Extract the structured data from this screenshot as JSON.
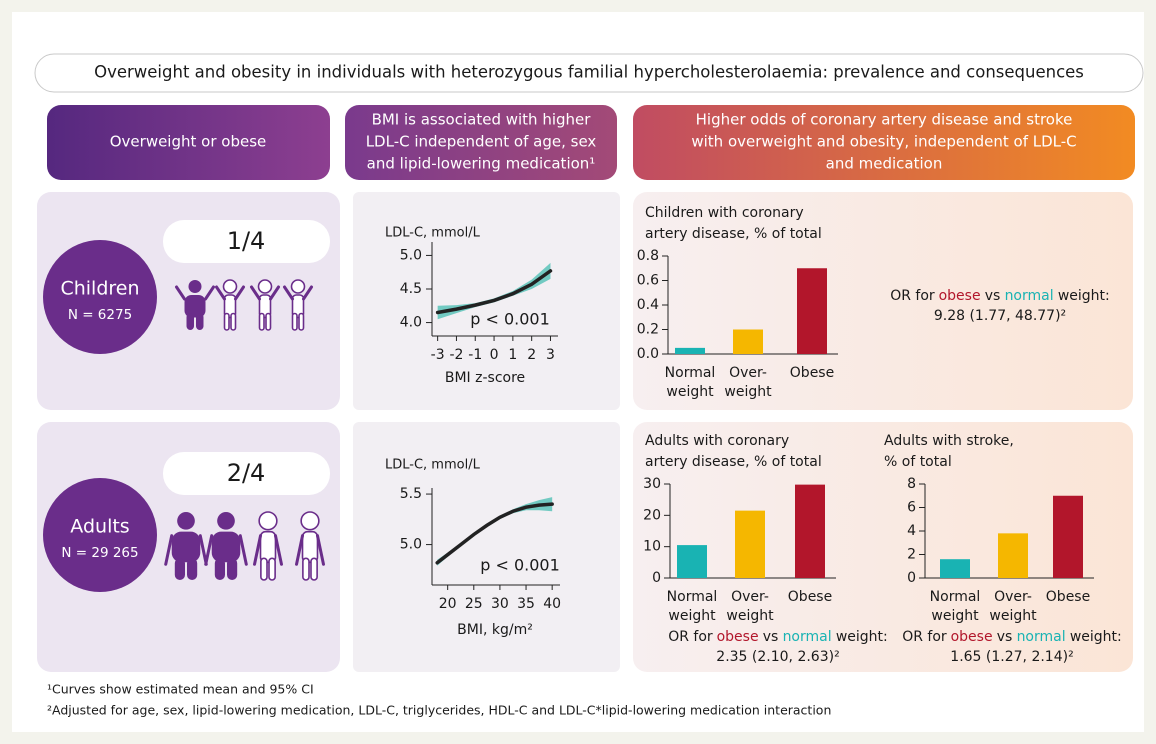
{
  "title": "Overweight and obesity in individuals with heterozygous familial hypercholesterolaemia: prevalence and consequences",
  "headers": [
    [
      "Overweight or obese"
    ],
    [
      "BMI is associated with higher",
      "LDL-C independent of age, sex",
      "and lipid-lowering medication¹"
    ],
    [
      "Higher odds of coronary artery disease and stroke",
      "with overweight and obesity, independent of LDL-C",
      "and medication"
    ]
  ],
  "rows": [
    {
      "group": "Children",
      "n": "N = 6275",
      "fraction": "1/4",
      "curve": {
        "type": "line",
        "title": "LDL-C, mmol/L",
        "xlabel": "BMI z-score",
        "annotation": "p < 0.001",
        "x": [
          -3,
          -2,
          -1,
          0,
          1,
          2,
          3
        ],
        "values": [
          4.15,
          4.2,
          4.26,
          4.33,
          4.43,
          4.57,
          4.77
        ],
        "lower": [
          4.05,
          4.14,
          4.23,
          4.3,
          4.4,
          4.5,
          4.65
        ],
        "upper": [
          4.25,
          4.26,
          4.29,
          4.36,
          4.47,
          4.64,
          4.89
        ],
        "color": "#222222",
        "band_color": "#5cc3b8",
        "xlim": [
          -3.3,
          3.4
        ],
        "ylim": [
          3.8,
          5.2
        ],
        "xticks": [
          -3,
          -2,
          -1,
          0,
          1,
          2,
          3
        ],
        "yticks": [
          {
            "value": 4,
            "label": "4.0"
          },
          4.5,
          {
            "value": 5,
            "label": "5.0"
          }
        ]
      },
      "bars": [
        {
          "type": "bar",
          "title": [
            "Children with coronary",
            "artery disease, % of total"
          ],
          "categories": [
            [
              "Normal",
              "weight"
            ],
            [
              "Over-",
              "weight"
            ],
            [
              "Obese"
            ]
          ],
          "values": [
            0.05,
            0.2,
            0.7
          ],
          "colors": [
            "#19b3b3",
            "#f5b700",
            "#b2162b"
          ],
          "ylim": [
            0,
            0.8
          ],
          "yticks": [
            {
              "value": 0,
              "label": "0.0"
            },
            0.2,
            0.4,
            0.6,
            0.8
          ],
          "or": {
            "lead": "OR for",
            "obese": "obese",
            "vs": "vs",
            "normal": "normal",
            "tail": "weight:",
            "value": "9.28 (1.77, 48.77)²"
          }
        }
      ]
    },
    {
      "group": "Adults",
      "n": "N = 29 265",
      "fraction": "2/4",
      "curve": {
        "type": "line",
        "title": "LDL-C, mmol/L",
        "xlabel": "BMI, kg/m²",
        "annotation": "p < 0.001",
        "x": [
          18,
          20,
          22.5,
          25,
          27.5,
          30,
          32.5,
          35,
          37.5,
          40
        ],
        "values": [
          4.82,
          4.9,
          5.0,
          5.1,
          5.19,
          5.27,
          5.33,
          5.37,
          5.39,
          5.4
        ],
        "lower": [
          4.79,
          4.88,
          4.99,
          5.09,
          5.18,
          5.26,
          5.31,
          5.34,
          5.34,
          5.33
        ],
        "upper": [
          4.85,
          4.92,
          5.01,
          5.11,
          5.2,
          5.28,
          5.35,
          5.4,
          5.44,
          5.47
        ],
        "color": "#222222",
        "band_color": "#5cc3b8",
        "xlim": [
          17,
          41.5
        ],
        "ylim": [
          4.6,
          5.56
        ],
        "xticks": [
          20,
          25,
          30,
          35,
          40
        ],
        "yticks": [
          {
            "value": 5,
            "label": "5.0"
          },
          5.5
        ]
      },
      "bars": [
        {
          "type": "bar",
          "title": [
            "Adults with coronary",
            "artery disease, % of total"
          ],
          "categories": [
            [
              "Normal",
              "weight"
            ],
            [
              "Over-",
              "weight"
            ],
            [
              "Obese"
            ]
          ],
          "values": [
            10.5,
            21.5,
            29.8
          ],
          "colors": [
            "#19b3b3",
            "#f5b700",
            "#b2162b"
          ],
          "ylim": [
            0,
            30
          ],
          "yticks": [
            0,
            10,
            20,
            30
          ],
          "or": {
            "lead": "OR for",
            "obese": "obese",
            "vs": "vs",
            "normal": "normal",
            "tail": "weight:",
            "value": "2.35 (2.10, 2.63)²"
          }
        },
        {
          "type": "bar",
          "title": [
            "Adults with stroke,",
            "% of total"
          ],
          "categories": [
            [
              "Normal",
              "weight"
            ],
            [
              "Over-",
              "weight"
            ],
            [
              "Obese"
            ]
          ],
          "values": [
            1.6,
            3.8,
            7.0
          ],
          "colors": [
            "#19b3b3",
            "#f5b700",
            "#b2162b"
          ],
          "ylim": [
            0,
            8
          ],
          "yticks": [
            0,
            2,
            4,
            6,
            8
          ],
          "or": {
            "lead": "OR for",
            "obese": "obese",
            "vs": "vs",
            "normal": "normal",
            "tail": "weight:",
            "value": "1.65 (1.27, 2.14)²"
          }
        }
      ]
    }
  ],
  "footnotes": [
    "¹Curves show estimated mean and 95% CI",
    "²Adjusted for age, sex, lipid-lowering medication, LDL-C, triglycerides, HDL-C and LDL-C*lipid-lowering medication interaction"
  ]
}
